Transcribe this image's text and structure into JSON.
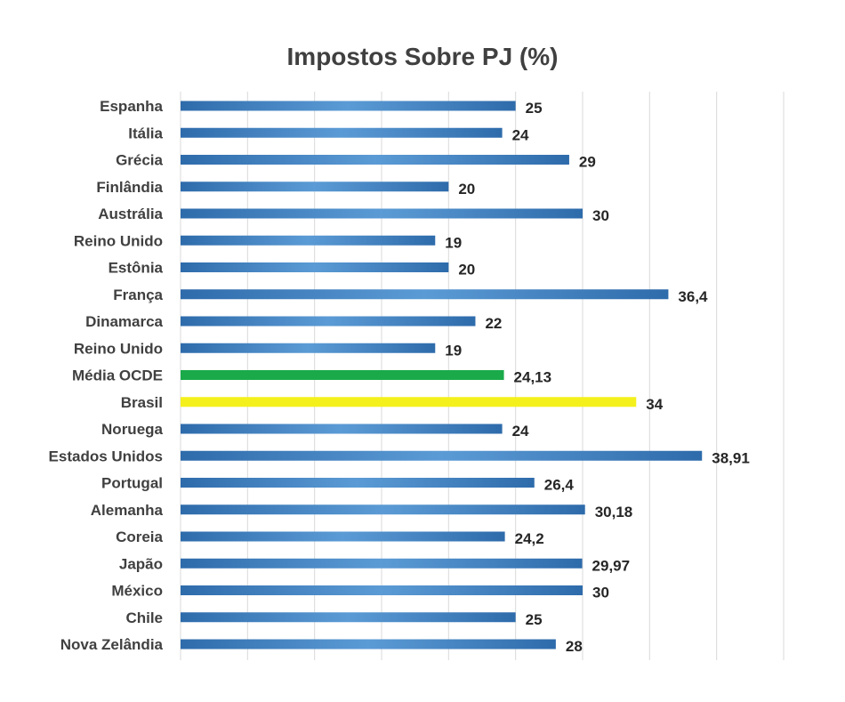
{
  "chart_data": {
    "type": "bar",
    "orientation": "horizontal",
    "title": "Impostos Sobre PJ (%)",
    "xlabel": "",
    "ylabel": "",
    "xlim": [
      0,
      45
    ],
    "grid": "vertical",
    "categories": [
      "Espanha",
      "Itália",
      "Grécia",
      "Finlândia",
      "Austrália",
      "Reino Unido",
      "Estônia",
      "França",
      "Dinamarca",
      "Reino Unido",
      "Média OCDE",
      "Brasil",
      "Noruega",
      "Estados Unidos",
      "Portugal",
      "Alemanha",
      "Coreia",
      "Japão",
      "México",
      "Chile",
      "Nova Zelândia"
    ],
    "values": [
      25,
      24,
      29,
      20,
      30,
      19,
      20,
      36.4,
      22,
      19,
      24.13,
      34,
      24,
      38.91,
      26.4,
      30.18,
      24.2,
      29.97,
      30,
      25,
      28
    ],
    "value_labels": [
      "25",
      "24",
      "29",
      "20",
      "30",
      "19",
      "20",
      "36,4",
      "22",
      "19",
      "24,13",
      "34",
      "24",
      "38,91",
      "26,4",
      "30,18",
      "24,2",
      "29,97",
      "30",
      "25",
      "28"
    ],
    "colors": {
      "default": "#2e6bab",
      "highlight": "#5b9bd5",
      "Média OCDE": "#1aaa4a",
      "Brasil": "#f4f01c"
    }
  }
}
